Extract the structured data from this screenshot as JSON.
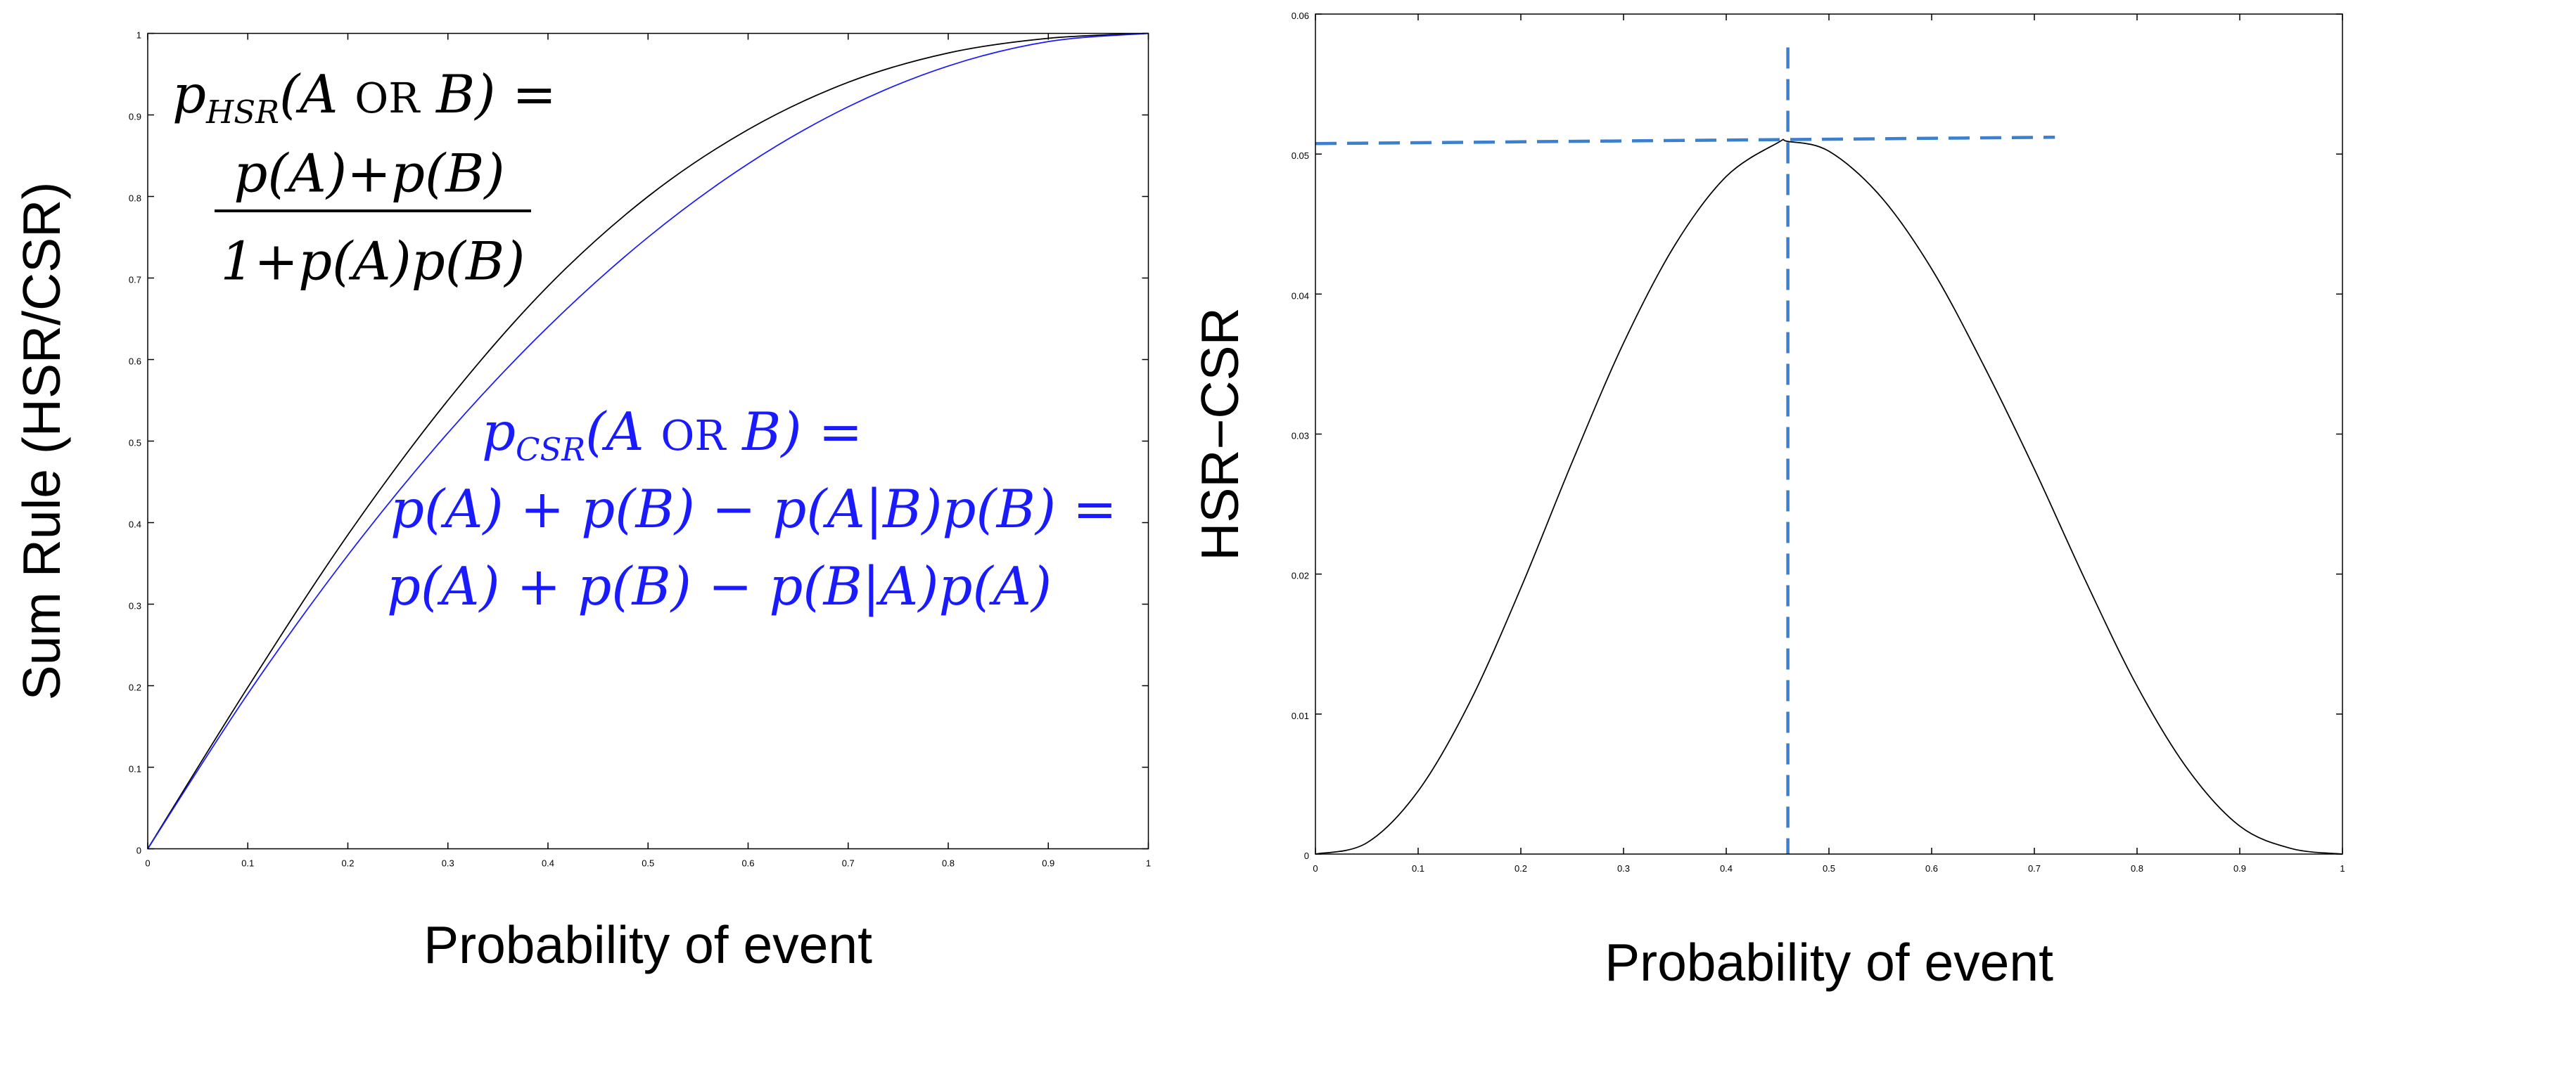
{
  "chart_data": [
    {
      "type": "line",
      "xlabel": "Probability of event",
      "ylabel": "Sum Rule (HSR/CSR)",
      "xlim": [
        0,
        1
      ],
      "ylim": [
        0,
        1
      ],
      "xticks": [
        "0",
        "0.1",
        "0.2",
        "0.3",
        "0.4",
        "0.5",
        "0.6",
        "0.7",
        "0.8",
        "0.9",
        "1"
      ],
      "yticks": [
        "0",
        "0.1",
        "0.2",
        "0.3",
        "0.4",
        "0.5",
        "0.6",
        "0.7",
        "0.8",
        "0.9",
        "1"
      ],
      "grid": false,
      "x": [
        0,
        0.1,
        0.2,
        0.3,
        0.4,
        0.5,
        0.6,
        0.7,
        0.8,
        0.9,
        1.0
      ],
      "series": [
        {
          "color": "#000000",
          "values": [
            0,
            0.198,
            0.385,
            0.55,
            0.69,
            0.8,
            0.882,
            0.94,
            0.976,
            0.994,
            1.0
          ]
        },
        {
          "color": "#1a1aff",
          "values": [
            0,
            0.19,
            0.36,
            0.51,
            0.64,
            0.75,
            0.84,
            0.91,
            0.96,
            0.99,
            1.0
          ]
        }
      ],
      "annotations": {
        "hsr_formula": {
          "color": "#000000",
          "lhs_p": "p",
          "lhs_sub": "HSR",
          "lhs_open": "(A ",
          "lhs_or": "OR",
          "lhs_close": " B) =",
          "numerator": "p(A)+p(B)",
          "denominator": "1+p(A)p(B)"
        },
        "csr_formula": {
          "color": "#1a1aff",
          "lhs_p": "p",
          "lhs_sub": "CSR",
          "lhs_open": "(A ",
          "lhs_or": "OR",
          "lhs_close": " B) =",
          "line2": "p(A) + p(B) − p(A|B)p(B) =",
          "line3": "p(A) + p(B) − p(B|A)p(A)"
        }
      }
    },
    {
      "type": "line",
      "xlabel": "Probability of event",
      "ylabel": "HSR−CSR",
      "xlim": [
        0,
        1
      ],
      "ylim": [
        0,
        0.06
      ],
      "xticks": [
        "0",
        "0.1",
        "0.2",
        "0.3",
        "0.4",
        "0.5",
        "0.6",
        "0.7",
        "0.8",
        "0.9",
        "1"
      ],
      "yticks": [
        "0",
        "0.01",
        "0.02",
        "0.03",
        "0.04",
        "0.05",
        "0.06"
      ],
      "grid": false,
      "x": [
        0,
        0.05,
        0.1,
        0.15,
        0.2,
        0.25,
        0.3,
        0.35,
        0.4,
        0.45,
        0.46,
        0.5,
        0.55,
        0.6,
        0.65,
        0.7,
        0.75,
        0.8,
        0.85,
        0.9,
        0.95,
        1.0
      ],
      "series": [
        {
          "color": "#000000",
          "values": [
            0,
            0.0008,
            0.0045,
            0.0108,
            0.019,
            0.028,
            0.0365,
            0.0435,
            0.0484,
            0.0508,
            0.0509,
            0.0502,
            0.047,
            0.0418,
            0.035,
            0.0275,
            0.0195,
            0.012,
            0.006,
            0.002,
            0.0004,
            0
          ]
        }
      ],
      "reference_lines": {
        "color": "#3b7fcf",
        "vertical_x": 0.46,
        "horizontal_y": 0.051
      }
    }
  ]
}
